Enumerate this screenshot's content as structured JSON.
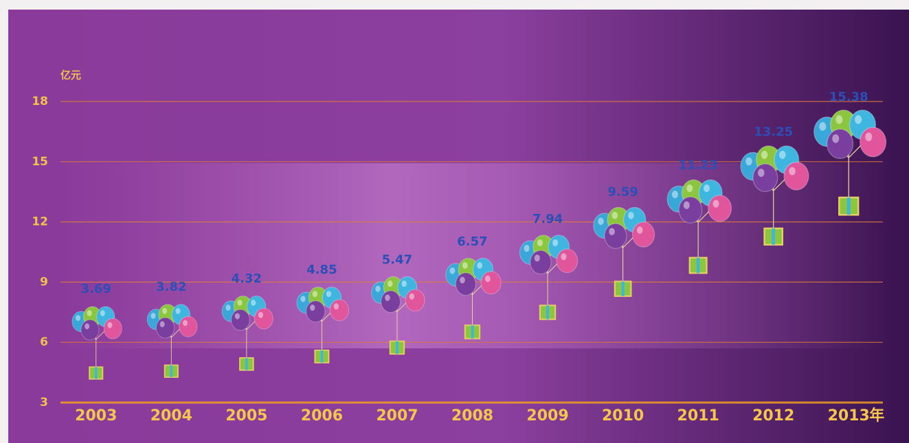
{
  "chart_data": {
    "type": "balloon-bar",
    "y_unit": "亿元",
    "x_unit": "年",
    "categories": [
      "2003",
      "2004",
      "2005",
      "2006",
      "2007",
      "2008",
      "2009",
      "2010",
      "2011",
      "2012",
      "2013"
    ],
    "values": [
      3.69,
      3.82,
      4.32,
      4.85,
      5.47,
      6.57,
      7.94,
      9.59,
      11.23,
      13.25,
      15.38
    ],
    "color": "#2a4fb0",
    "ylim": [
      3,
      18
    ],
    "yticks": [
      3,
      6,
      9,
      12,
      15,
      18
    ],
    "grid": true
  }
}
